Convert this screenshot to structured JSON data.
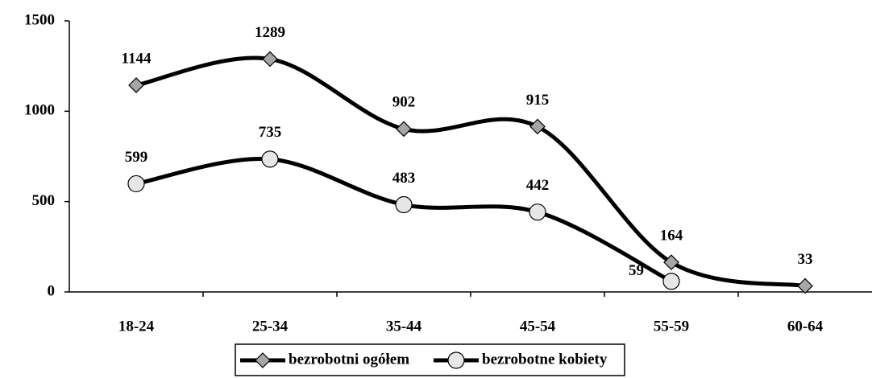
{
  "chart_data": {
    "type": "line",
    "categories": [
      "18-24",
      "25-34",
      "35-44",
      "45-54",
      "55-59",
      "60-64"
    ],
    "series": [
      {
        "name": "bezrobotni ogółem",
        "color": "#000000",
        "marker": "diamond",
        "marker_color": "#a6a6a6",
        "values": [
          1144,
          1289,
          902,
          915,
          164,
          33
        ]
      },
      {
        "name": "bezrobotne kobiety",
        "color": "#000000",
        "marker": "circle",
        "marker_color": "#e6e6e6",
        "values": [
          599,
          735,
          483,
          442,
          59,
          null
        ]
      }
    ],
    "ylim": [
      0,
      1500
    ],
    "yticks": [
      0,
      500,
      1000,
      1500
    ],
    "grid": false,
    "smooth": true,
    "legend": "bottom"
  }
}
